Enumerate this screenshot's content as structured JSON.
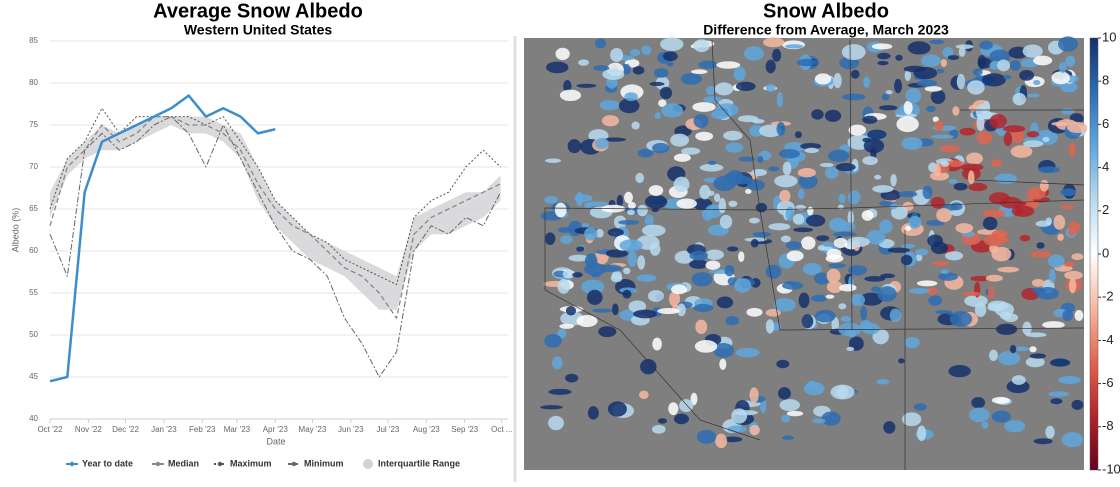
{
  "chart_data": [
    {
      "type": "line",
      "title": "Average Snow Albedo",
      "subtitle": "Western United States",
      "y_label": "Albedo (%)",
      "x_label": "Date",
      "x": [
        0,
        14,
        28,
        42,
        56,
        70,
        84,
        98,
        112,
        126,
        140,
        154,
        168,
        182,
        196,
        210,
        224,
        238,
        252,
        266,
        280,
        294,
        308,
        322,
        336,
        350,
        364
      ],
      "xlim": [
        0,
        370
      ],
      "xticks": [
        {
          "value": 0,
          "label": "Oct '22"
        },
        {
          "value": 31,
          "label": "Nov '22"
        },
        {
          "value": 61,
          "label": "Dec '22"
        },
        {
          "value": 92,
          "label": "Jan '23"
        },
        {
          "value": 123,
          "label": "Feb '23"
        },
        {
          "value": 151,
          "label": "Mar '23"
        },
        {
          "value": 182,
          "label": "Apr '23"
        },
        {
          "value": 212,
          "label": "May '23"
        },
        {
          "value": 243,
          "label": "Jun '23"
        },
        {
          "value": 273,
          "label": "Jul '23"
        },
        {
          "value": 304,
          "label": "Aug '23"
        },
        {
          "value": 335,
          "label": "Sep '23"
        },
        {
          "value": 365,
          "label": "Oct ..."
        }
      ],
      "ylim": [
        40,
        85
      ],
      "yticks": [
        40,
        45,
        50,
        55,
        60,
        65,
        70,
        75,
        80,
        85
      ],
      "grid": true,
      "series": [
        {
          "name": "Year to date",
          "color": "#3d8ecb",
          "dash": "none",
          "width": 2.5,
          "values": [
            44.5,
            45,
            67,
            73,
            74,
            75,
            76,
            77,
            78.5,
            76,
            77,
            76,
            74,
            74.5,
            null,
            null,
            null,
            null,
            null,
            null,
            null,
            null,
            null,
            null,
            null,
            null,
            null
          ]
        },
        {
          "name": "Median",
          "color": "#888888",
          "dash": "5 3",
          "width": 1.3,
          "values": [
            63,
            70,
            72,
            75,
            73,
            74,
            76,
            76,
            75,
            75,
            74,
            72,
            68,
            65,
            63,
            62,
            60,
            58,
            57,
            55,
            52,
            62,
            64,
            65,
            66,
            67,
            68
          ]
        },
        {
          "name": "Maximum",
          "color": "#555555",
          "dash": "2 2",
          "width": 1,
          "values": [
            65,
            71,
            73,
            77,
            74,
            76,
            76,
            76,
            76,
            75,
            76,
            73,
            70,
            66,
            64,
            62,
            61,
            59,
            58,
            57,
            56,
            64,
            66,
            67,
            70,
            72,
            70
          ]
        },
        {
          "name": "Minimum",
          "color": "#666666",
          "dash": "6 2 2 2",
          "width": 1,
          "values": [
            62,
            57,
            72,
            74,
            72,
            73,
            75,
            76,
            74,
            70,
            75,
            71,
            67,
            63,
            60,
            59,
            57,
            52,
            49,
            45,
            48,
            60,
            63,
            62,
            64,
            63,
            67
          ]
        }
      ],
      "band": {
        "name": "Interquartile Range",
        "color": "#d3d3d6",
        "low": [
          64,
          69,
          71,
          72,
          72,
          73,
          74,
          75,
          74,
          74,
          73,
          71,
          66,
          63,
          61,
          59,
          58,
          57,
          55,
          53,
          53,
          60,
          62,
          62,
          63,
          64,
          66
        ],
        "high": [
          67,
          71,
          73,
          75,
          74,
          75,
          76,
          76,
          76,
          76,
          75,
          74,
          70,
          66,
          64,
          62,
          61,
          60,
          59,
          58,
          57,
          64,
          65,
          66,
          67,
          67,
          69
        ]
      }
    },
    {
      "type": "map",
      "title": "Snow Albedo",
      "subtitle": "Difference from Average, March 2023",
      "ylim": [
        -10,
        10
      ],
      "yticks": [
        10,
        8,
        6,
        4,
        2,
        0,
        -2,
        -4,
        -6,
        -8,
        -10
      ],
      "colors": [
        "#14306b",
        "#2d6db3",
        "#5fa7dc",
        "#b9daf0",
        "#ffffff",
        "#f6b8a0",
        "#e0644f",
        "#b2242b",
        "#67001f"
      ]
    }
  ]
}
